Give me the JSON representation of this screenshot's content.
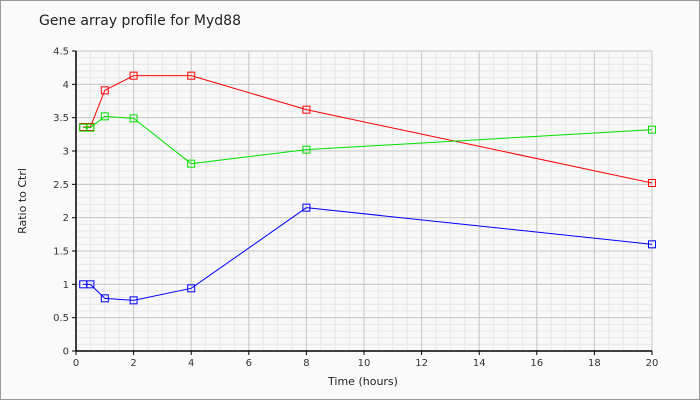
{
  "chart_data": {
    "type": "line",
    "title": "Gene array profile for Myd88",
    "xlabel": "Time (hours)",
    "ylabel": "Ratio to Ctrl",
    "xlim": [
      0,
      20
    ],
    "ylim": [
      0,
      4.5
    ],
    "xticks": [
      0,
      2,
      4,
      6,
      8,
      10,
      12,
      14,
      16,
      18,
      20
    ],
    "yticks": [
      "0",
      "0.5",
      "1",
      "1.5",
      "2",
      "2.5",
      "3",
      "3.5",
      "4",
      "4.5"
    ],
    "grid": true,
    "x": [
      0.25,
      0.5,
      1,
      2,
      4,
      8,
      20
    ],
    "series": [
      {
        "name": "red",
        "color": "#ff0000",
        "values": [
          3.36,
          3.36,
          3.91,
          4.13,
          4.13,
          3.62,
          2.52
        ]
      },
      {
        "name": "green",
        "color": "#00e000",
        "values": [
          3.35,
          3.35,
          3.52,
          3.49,
          2.81,
          3.02,
          3.32
        ]
      },
      {
        "name": "blue",
        "color": "#0000ff",
        "values": [
          1.0,
          1.0,
          0.79,
          0.76,
          0.94,
          2.15,
          1.6
        ]
      }
    ]
  }
}
